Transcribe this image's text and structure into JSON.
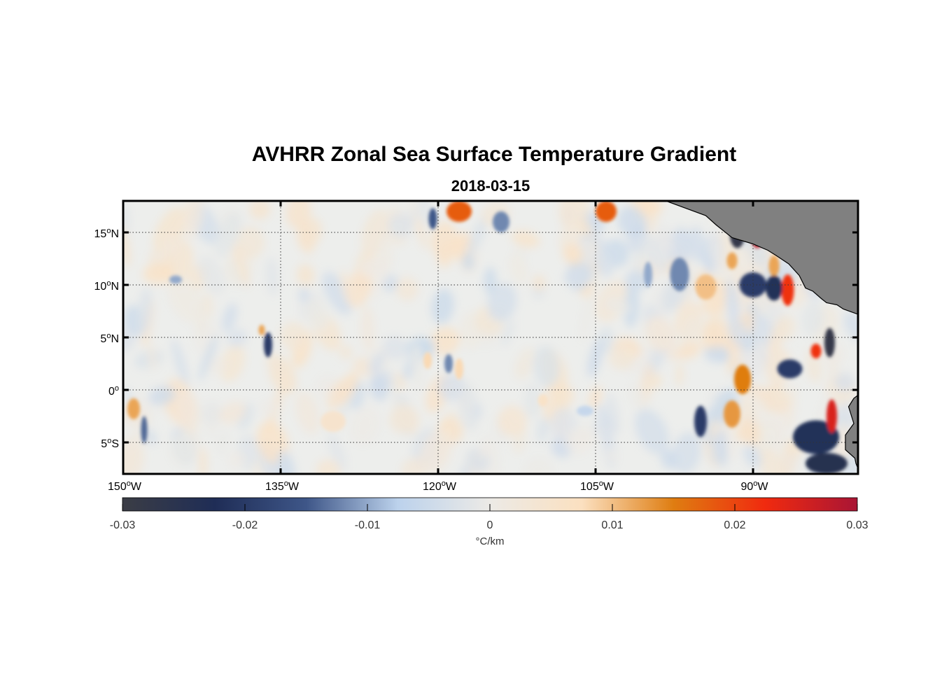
{
  "title": "AVHRR Zonal Sea Surface Temperature Gradient",
  "subtitle": "2018-03-15",
  "colors": {
    "land": "#808080",
    "frame": "#000000",
    "background_field": "#edeeec",
    "colormap": [
      "#3b3d45",
      "#1f2d56",
      "#3e5688",
      "#bcd2ec",
      "#eceae6",
      "#fbe0c0",
      "#df7d11",
      "#f02a0f",
      "#a91535"
    ]
  },
  "map": {
    "lon_range": [
      -150,
      -80
    ],
    "lat_range": [
      -8,
      18
    ],
    "grid": "dotted",
    "lon_ticks": [
      {
        "value": -150,
        "label": "150",
        "sup": "o",
        "hemi": "W"
      },
      {
        "value": -135,
        "label": "135",
        "sup": "o",
        "hemi": "W"
      },
      {
        "value": -120,
        "label": "120",
        "sup": "o",
        "hemi": "W"
      },
      {
        "value": -105,
        "label": "105",
        "sup": "o",
        "hemi": "W"
      },
      {
        "value": -90,
        "label": "90",
        "sup": "o",
        "hemi": "W"
      }
    ],
    "lat_ticks": [
      {
        "value": 15,
        "label": "15",
        "sup": "o",
        "hemi": "N"
      },
      {
        "value": 10,
        "label": "10",
        "sup": "o",
        "hemi": "N"
      },
      {
        "value": 5,
        "label": "5",
        "sup": "o",
        "hemi": "N"
      },
      {
        "value": 0,
        "label": "0",
        "sup": "o",
        "hemi": ""
      },
      {
        "value": -5,
        "label": "5",
        "sup": "o",
        "hemi": "S"
      }
    ]
  },
  "colorbar": {
    "range": [
      -0.03,
      0.03
    ],
    "ticks": [
      {
        "value": -0.03,
        "label": "-0.03"
      },
      {
        "value": -0.02,
        "label": "-0.02"
      },
      {
        "value": -0.01,
        "label": "-0.01"
      },
      {
        "value": 0,
        "label": "0"
      },
      {
        "value": 0.01,
        "label": "0.01"
      },
      {
        "value": 0.02,
        "label": "0.02"
      },
      {
        "value": 0.03,
        "label": "0.03"
      }
    ],
    "unit": "°C/km"
  },
  "features": [
    {
      "lon": -118.0,
      "lat": 17.0,
      "value": 0.018,
      "rx": 1.2,
      "ry": 1.0
    },
    {
      "lon": -104.0,
      "lat": 17.0,
      "value": 0.018,
      "rx": 1.0,
      "ry": 1.0
    },
    {
      "lon": -120.5,
      "lat": 16.3,
      "value": -0.015,
      "rx": 0.4,
      "ry": 1.0
    },
    {
      "lon": -114.0,
      "lat": 16.0,
      "value": -0.012,
      "rx": 0.8,
      "ry": 1.0
    },
    {
      "lon": -91.5,
      "lat": 14.8,
      "value": -0.028,
      "rx": 0.7,
      "ry": 1.3
    },
    {
      "lon": -89.6,
      "lat": 14.8,
      "value": 0.028,
      "rx": 0.6,
      "ry": 1.3
    },
    {
      "lon": -88.0,
      "lat": 11.8,
      "value": 0.012,
      "rx": 0.5,
      "ry": 1.0
    },
    {
      "lon": -86.7,
      "lat": 9.5,
      "value": 0.022,
      "rx": 0.6,
      "ry": 1.5
    },
    {
      "lon": -88.0,
      "lat": 9.7,
      "value": -0.022,
      "rx": 0.8,
      "ry": 1.2
    },
    {
      "lon": -90.0,
      "lat": 10.0,
      "value": -0.02,
      "rx": 1.3,
      "ry": 1.2
    },
    {
      "lon": -92.0,
      "lat": 12.3,
      "value": 0.012,
      "rx": 0.5,
      "ry": 0.8
    },
    {
      "lon": -94.5,
      "lat": 9.8,
      "value": 0.01,
      "rx": 1.0,
      "ry": 1.2
    },
    {
      "lon": -97.0,
      "lat": 11.0,
      "value": -0.012,
      "rx": 0.9,
      "ry": 1.6
    },
    {
      "lon": -82.7,
      "lat": 4.5,
      "value": -0.028,
      "rx": 0.5,
      "ry": 1.4
    },
    {
      "lon": -84.0,
      "lat": 3.7,
      "value": 0.022,
      "rx": 0.5,
      "ry": 0.7
    },
    {
      "lon": -86.5,
      "lat": 2.0,
      "value": -0.02,
      "rx": 1.2,
      "ry": 0.9
    },
    {
      "lon": -91.0,
      "lat": 1.0,
      "value": 0.015,
      "rx": 0.8,
      "ry": 1.4
    },
    {
      "lon": -92.0,
      "lat": -2.3,
      "value": 0.013,
      "rx": 0.8,
      "ry": 1.3
    },
    {
      "lon": -95.0,
      "lat": -3.0,
      "value": -0.02,
      "rx": 0.6,
      "ry": 1.5
    },
    {
      "lon": -84.0,
      "lat": -4.5,
      "value": -0.022,
      "rx": 2.2,
      "ry": 1.6
    },
    {
      "lon": -82.5,
      "lat": -2.5,
      "value": 0.025,
      "rx": 0.5,
      "ry": 1.6
    },
    {
      "lon": -83.0,
      "lat": -7.0,
      "value": -0.025,
      "rx": 2.0,
      "ry": 1.0
    },
    {
      "lon": -136.2,
      "lat": 4.3,
      "value": -0.02,
      "rx": 0.4,
      "ry": 1.2
    },
    {
      "lon": -136.8,
      "lat": 5.7,
      "value": 0.012,
      "rx": 0.3,
      "ry": 0.5
    },
    {
      "lon": -121.0,
      "lat": 2.8,
      "value": 0.008,
      "rx": 0.4,
      "ry": 0.8
    },
    {
      "lon": -118.0,
      "lat": 2.0,
      "value": 0.008,
      "rx": 0.4,
      "ry": 1.0
    },
    {
      "lon": -119.0,
      "lat": 2.5,
      "value": -0.012,
      "rx": 0.4,
      "ry": 0.9
    },
    {
      "lon": -149.0,
      "lat": -1.8,
      "value": 0.012,
      "rx": 0.6,
      "ry": 1.0
    },
    {
      "lon": -148.0,
      "lat": -3.8,
      "value": -0.014,
      "rx": 0.3,
      "ry": 1.3
    },
    {
      "lon": -145.0,
      "lat": 10.5,
      "value": -0.01,
      "rx": 0.6,
      "ry": 0.4
    },
    {
      "lon": -100.0,
      "lat": 11.0,
      "value": -0.01,
      "rx": 0.4,
      "ry": 1.2
    },
    {
      "lon": -110.0,
      "lat": -1.0,
      "value": 0.006,
      "rx": 0.5,
      "ry": 0.6
    },
    {
      "lon": -130.0,
      "lat": -3.0,
      "value": 0.005,
      "rx": 1.2,
      "ry": 1.0
    },
    {
      "lon": -106.0,
      "lat": -2.0,
      "value": -0.006,
      "rx": 0.8,
      "ry": 0.5
    }
  ],
  "land": {
    "central_america": [
      [
        -98.3,
        18
      ],
      [
        -94.5,
        16.6
      ],
      [
        -93.5,
        15.7
      ],
      [
        -92.0,
        14.5
      ],
      [
        -90.0,
        13.9
      ],
      [
        -88.6,
        13.3
      ],
      [
        -87.8,
        12.8
      ],
      [
        -86.6,
        12.0
      ],
      [
        -85.6,
        10.9
      ],
      [
        -85.0,
        9.7
      ],
      [
        -84.3,
        9.4
      ],
      [
        -83.5,
        8.7
      ],
      [
        -83.0,
        8.3
      ],
      [
        -82.0,
        8.1
      ],
      [
        -81.4,
        7.7
      ],
      [
        -80,
        7.2
      ],
      [
        -80,
        18
      ]
    ],
    "south_america": [
      [
        -80,
        -0.5
      ],
      [
        -80.4,
        -0.8
      ],
      [
        -80.9,
        -1.6
      ],
      [
        -80.4,
        -3.2
      ],
      [
        -81.2,
        -4.3
      ],
      [
        -81.2,
        -5.7
      ],
      [
        -80.3,
        -6.5
      ],
      [
        -80.2,
        -7.0
      ],
      [
        -79.8,
        -8
      ],
      [
        -80,
        -8
      ]
    ]
  }
}
